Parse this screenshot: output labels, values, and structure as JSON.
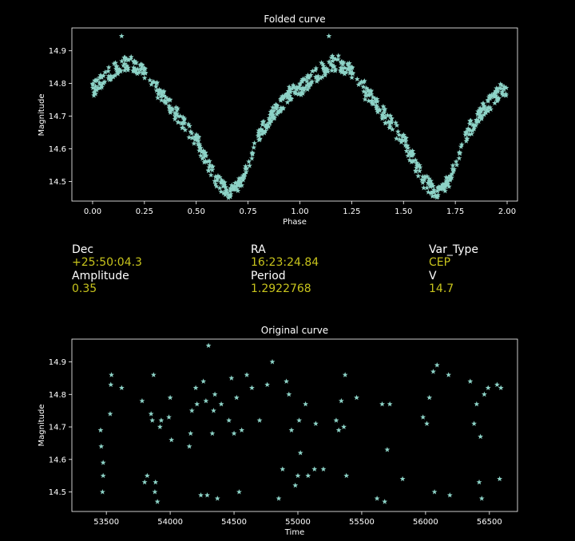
{
  "chart_data": [
    {
      "type": "scatter",
      "title": "Folded curve",
      "xlabel": "Phase",
      "ylabel": "Magnitude",
      "xlim": [
        -0.1,
        2.05
      ],
      "ylim": [
        14.97,
        14.44
      ],
      "y_inverted": true,
      "xticks": [
        0.0,
        0.25,
        0.5,
        0.75,
        1.0,
        1.25,
        1.5,
        1.75,
        2.0
      ],
      "xtick_labels": [
        "0.00",
        "0.25",
        "0.50",
        "0.75",
        "1.00",
        "1.25",
        "1.50",
        "1.75",
        "2.00"
      ],
      "yticks": [
        14.5,
        14.6,
        14.7,
        14.8,
        14.9
      ],
      "ytick_labels": [
        "14.5",
        "14.6",
        "14.7",
        "14.8",
        "14.9"
      ],
      "marker": "star",
      "color": "#8dd3c7",
      "curve_shape": {
        "phase": [
          0.0,
          0.05,
          0.1,
          0.15,
          0.2,
          0.25,
          0.3,
          0.35,
          0.4,
          0.45,
          0.5,
          0.55,
          0.6,
          0.65,
          0.7,
          0.75,
          0.8,
          0.85,
          0.9,
          0.95,
          1.0
        ],
        "magnitude": [
          14.78,
          14.81,
          14.84,
          14.86,
          14.86,
          14.83,
          14.79,
          14.75,
          14.71,
          14.67,
          14.63,
          14.56,
          14.5,
          14.47,
          14.48,
          14.54,
          14.64,
          14.69,
          14.73,
          14.77,
          14.79
        ]
      }
    },
    {
      "type": "scatter",
      "title": "Original curve",
      "xlabel": "Time",
      "ylabel": "Magnitude",
      "xlim": [
        53230,
        56720
      ],
      "ylim": [
        14.97,
        14.44
      ],
      "y_inverted": true,
      "xticks": [
        53500,
        54000,
        54500,
        55000,
        55500,
        56000,
        56500
      ],
      "xtick_labels": [
        "53500",
        "54000",
        "54500",
        "55000",
        "55500",
        "56000",
        "56500"
      ],
      "yticks": [
        14.5,
        14.6,
        14.7,
        14.8,
        14.9
      ],
      "ytick_labels": [
        "14.5",
        "14.6",
        "14.7",
        "14.8",
        "14.9"
      ],
      "marker": "star",
      "color": "#8dd3c7",
      "points": [
        [
          53455,
          14.69
        ],
        [
          53460,
          14.64
        ],
        [
          53470,
          14.5
        ],
        [
          53475,
          14.55
        ],
        [
          53475,
          14.59
        ],
        [
          53530,
          14.74
        ],
        [
          53535,
          14.83
        ],
        [
          53540,
          14.86
        ],
        [
          53620,
          14.82
        ],
        [
          53780,
          14.78
        ],
        [
          53800,
          14.53
        ],
        [
          53820,
          14.55
        ],
        [
          53850,
          14.74
        ],
        [
          53860,
          14.72
        ],
        [
          53870,
          14.86
        ],
        [
          53880,
          14.5
        ],
        [
          53885,
          14.53
        ],
        [
          53900,
          14.47
        ],
        [
          53920,
          14.7
        ],
        [
          53930,
          14.72
        ],
        [
          53990,
          14.73
        ],
        [
          54000,
          14.79
        ],
        [
          54010,
          14.66
        ],
        [
          54150,
          14.64
        ],
        [
          54160,
          14.68
        ],
        [
          54170,
          14.75
        ],
        [
          54200,
          14.82
        ],
        [
          54210,
          14.77
        ],
        [
          54240,
          14.49
        ],
        [
          54260,
          14.84
        ],
        [
          54280,
          14.78
        ],
        [
          54290,
          14.49
        ],
        [
          54300,
          14.95
        ],
        [
          54330,
          14.68
        ],
        [
          54340,
          14.75
        ],
        [
          54350,
          14.8
        ],
        [
          54370,
          14.48
        ],
        [
          54400,
          14.77
        ],
        [
          54460,
          14.72
        ],
        [
          54480,
          14.85
        ],
        [
          54500,
          14.68
        ],
        [
          54520,
          14.79
        ],
        [
          54540,
          14.5
        ],
        [
          54560,
          14.69
        ],
        [
          54600,
          14.86
        ],
        [
          54640,
          14.82
        ],
        [
          54700,
          14.72
        ],
        [
          54760,
          14.83
        ],
        [
          54800,
          14.9
        ],
        [
          54850,
          14.48
        ],
        [
          54880,
          14.57
        ],
        [
          54910,
          14.84
        ],
        [
          54930,
          14.8
        ],
        [
          54950,
          14.69
        ],
        [
          54980,
          14.52
        ],
        [
          55000,
          14.55
        ],
        [
          55010,
          14.72
        ],
        [
          55020,
          14.62
        ],
        [
          55060,
          14.77
        ],
        [
          55080,
          14.55
        ],
        [
          55130,
          14.57
        ],
        [
          55140,
          14.71
        ],
        [
          55200,
          14.57
        ],
        [
          55300,
          14.72
        ],
        [
          55320,
          14.69
        ],
        [
          55340,
          14.78
        ],
        [
          55360,
          14.7
        ],
        [
          55370,
          14.86
        ],
        [
          55380,
          14.55
        ],
        [
          55460,
          14.79
        ],
        [
          55620,
          14.48
        ],
        [
          55660,
          14.77
        ],
        [
          55680,
          14.47
        ],
        [
          55700,
          14.63
        ],
        [
          55720,
          14.77
        ],
        [
          55820,
          14.54
        ],
        [
          55980,
          14.73
        ],
        [
          56010,
          14.71
        ],
        [
          56030,
          14.79
        ],
        [
          56060,
          14.87
        ],
        [
          56070,
          14.5
        ],
        [
          56090,
          14.89
        ],
        [
          56180,
          14.86
        ],
        [
          56190,
          14.49
        ],
        [
          56350,
          14.84
        ],
        [
          56380,
          14.71
        ],
        [
          56400,
          14.77
        ],
        [
          56420,
          14.53
        ],
        [
          56430,
          14.67
        ],
        [
          56440,
          14.48
        ],
        [
          56460,
          14.8
        ],
        [
          56490,
          14.82
        ],
        [
          56560,
          14.83
        ],
        [
          56580,
          14.54
        ],
        [
          56590,
          14.82
        ]
      ]
    }
  ],
  "info": [
    {
      "label": "Dec",
      "value": "+25:50:04.3"
    },
    {
      "label": "RA",
      "value": "16:23:24.84"
    },
    {
      "label": "Var_Type",
      "value": "CEP"
    },
    {
      "label": "Amplitude",
      "value": "0.35"
    },
    {
      "label": "Period",
      "value": "1.2922768"
    },
    {
      "label": "V",
      "value": "14.7"
    }
  ]
}
